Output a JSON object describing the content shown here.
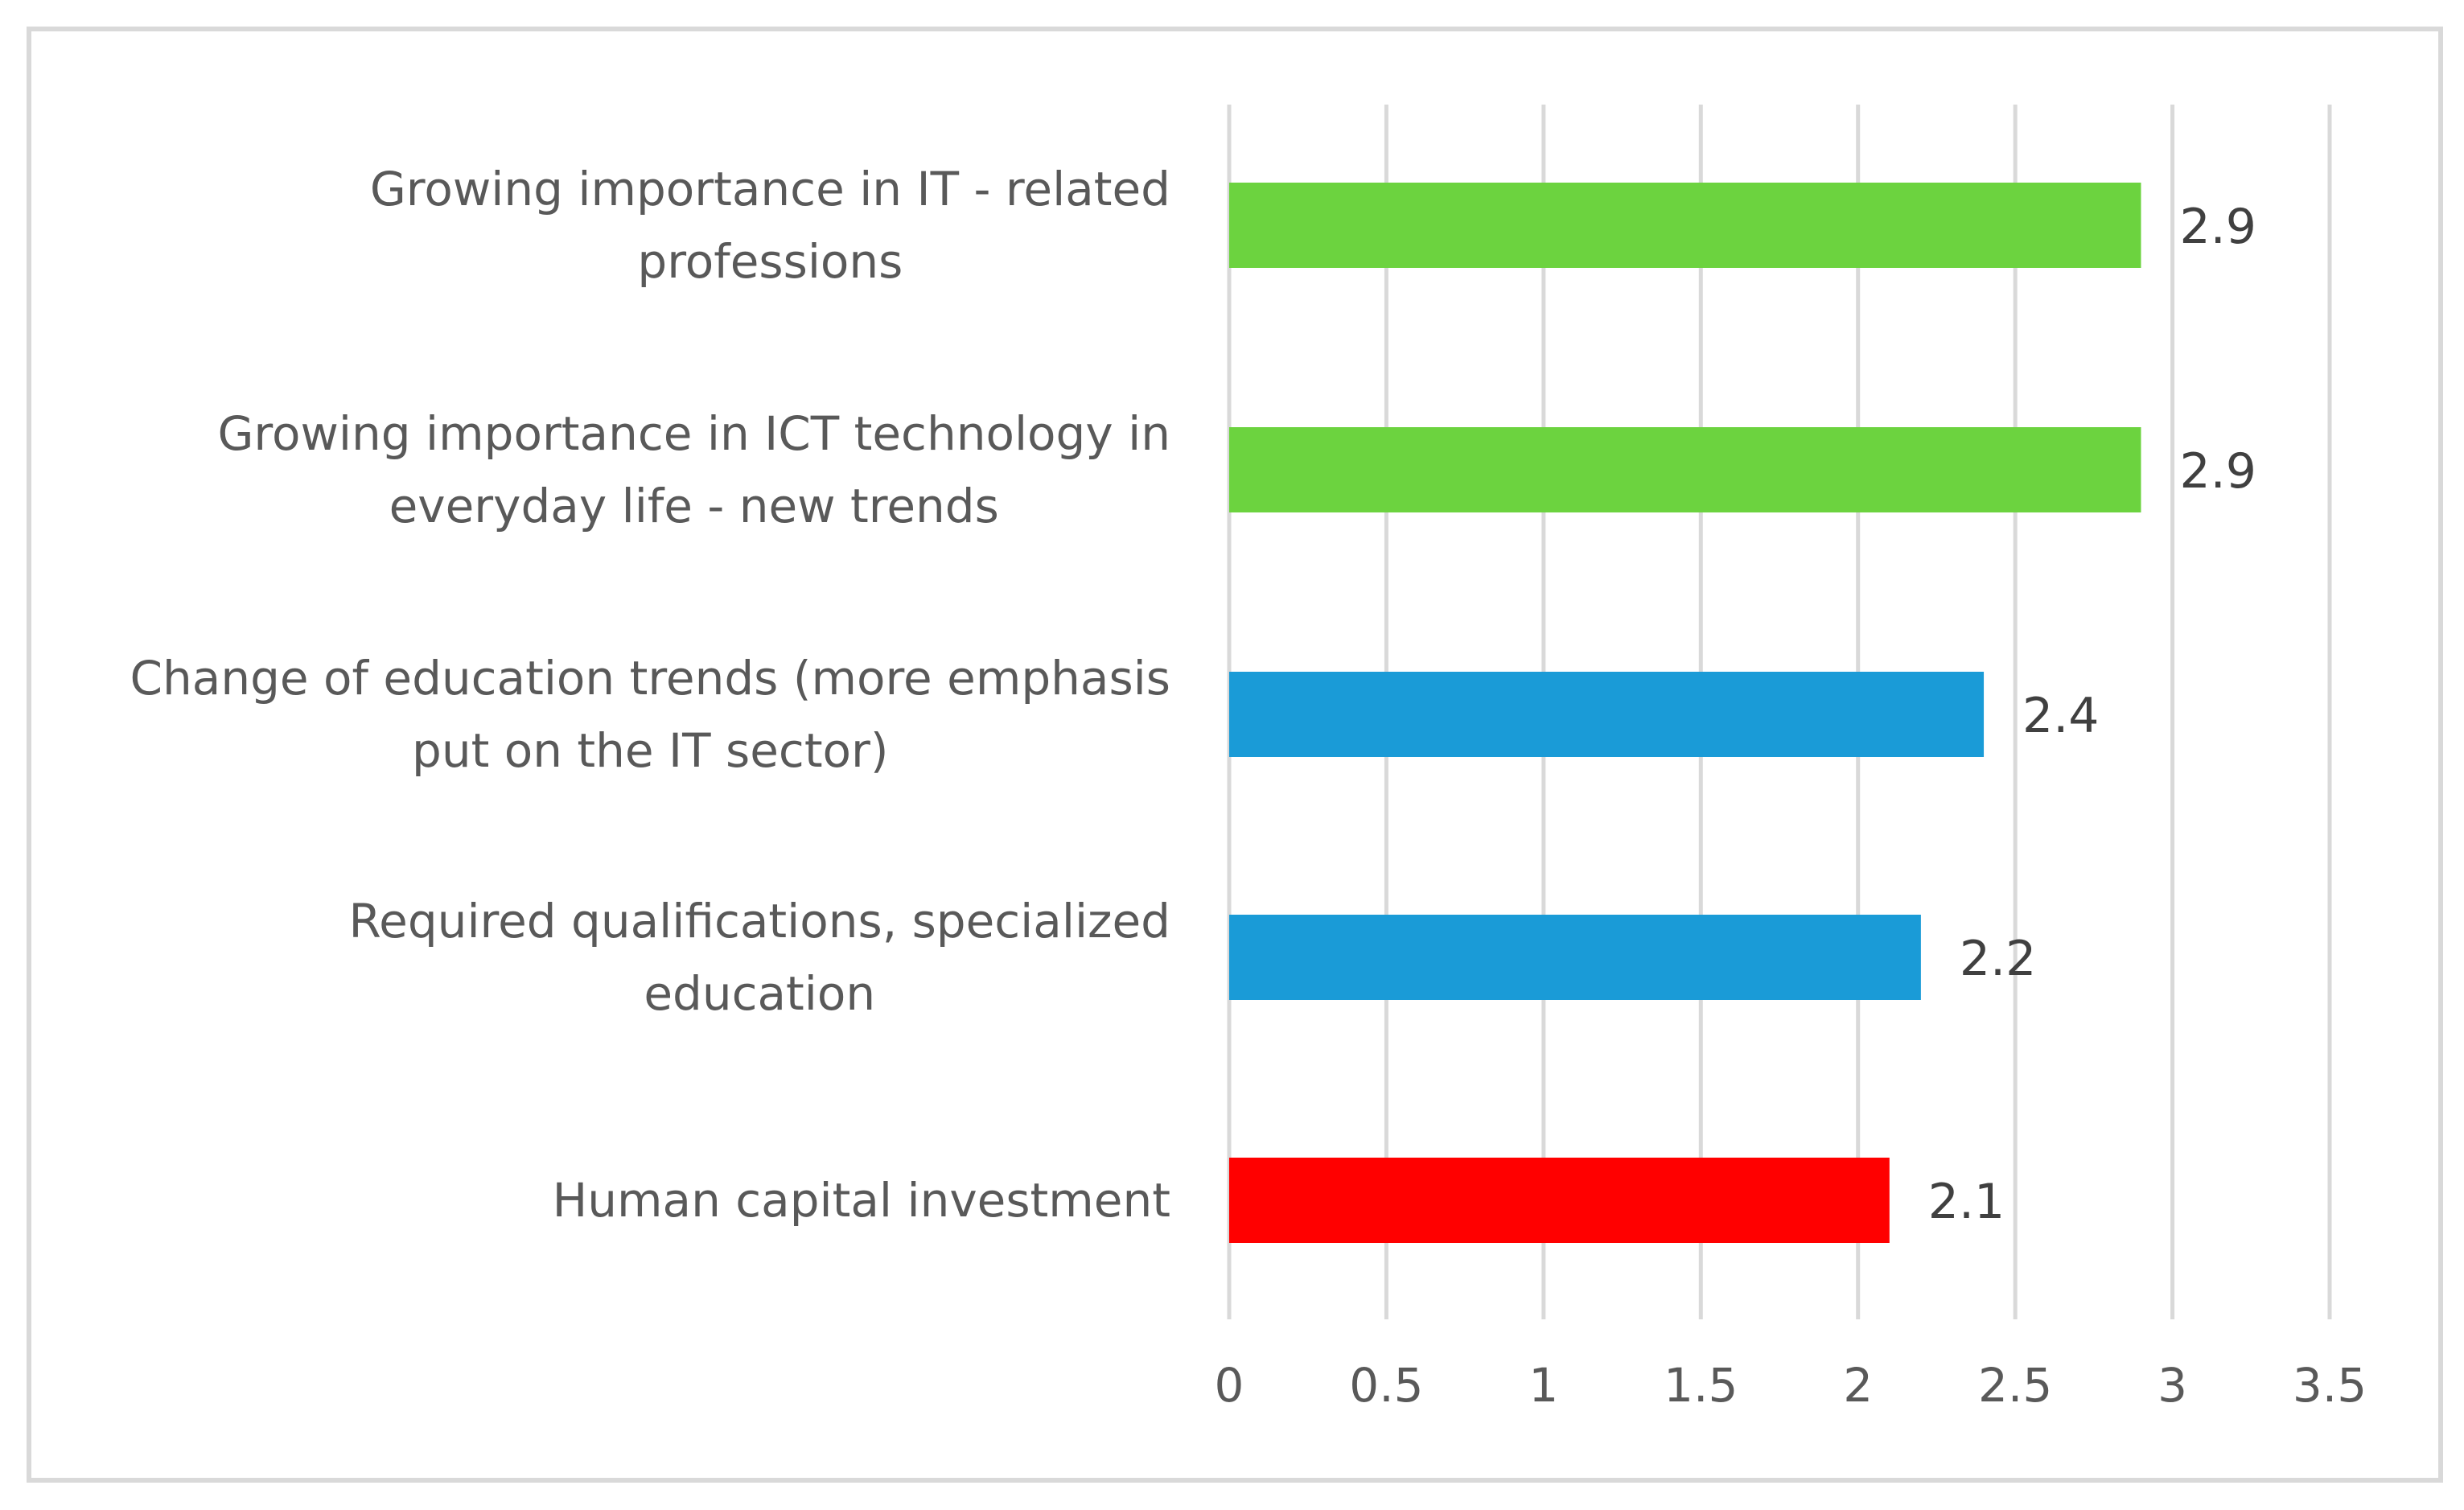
{
  "chart_data": {
    "type": "bar",
    "orientation": "horizontal",
    "title": "",
    "xlabel": "",
    "ylabel": "",
    "xlim": [
      0,
      3.5
    ],
    "ticks": [
      "0",
      "0.5",
      "1",
      "1.5",
      "2",
      "2.5",
      "3",
      "3.5"
    ],
    "tick_values": [
      0,
      0.5,
      1,
      1.5,
      2,
      2.5,
      3,
      3.5
    ],
    "grid": true,
    "legend": "none",
    "categories": [
      {
        "lines": [
          "Growing importance in IT - related",
          "professions"
        ]
      },
      {
        "lines": [
          "Growing importance in ICT technology in",
          "everyday life - new trends"
        ]
      },
      {
        "lines": [
          "Change of education trends (more emphasis",
          "put on the IT sector)"
        ]
      },
      {
        "lines": [
          "Required qualifications, specialized",
          "education"
        ]
      },
      {
        "lines": [
          "Human capital investment"
        ]
      }
    ],
    "values": [
      2.9,
      2.9,
      2.4,
      2.2,
      2.1
    ],
    "value_labels": [
      "2.9",
      "2.9",
      "2.4",
      "2.2",
      "2.1"
    ],
    "bar_colors": [
      "#6cd33f",
      "#6cd33f",
      "#1a9bd7",
      "#1a9bd7",
      "#ff0000"
    ]
  },
  "colors": {
    "frame": "#d9d9d9",
    "gridline": "#d9d9d9",
    "text": "#595959",
    "data_label": "#404040"
  }
}
